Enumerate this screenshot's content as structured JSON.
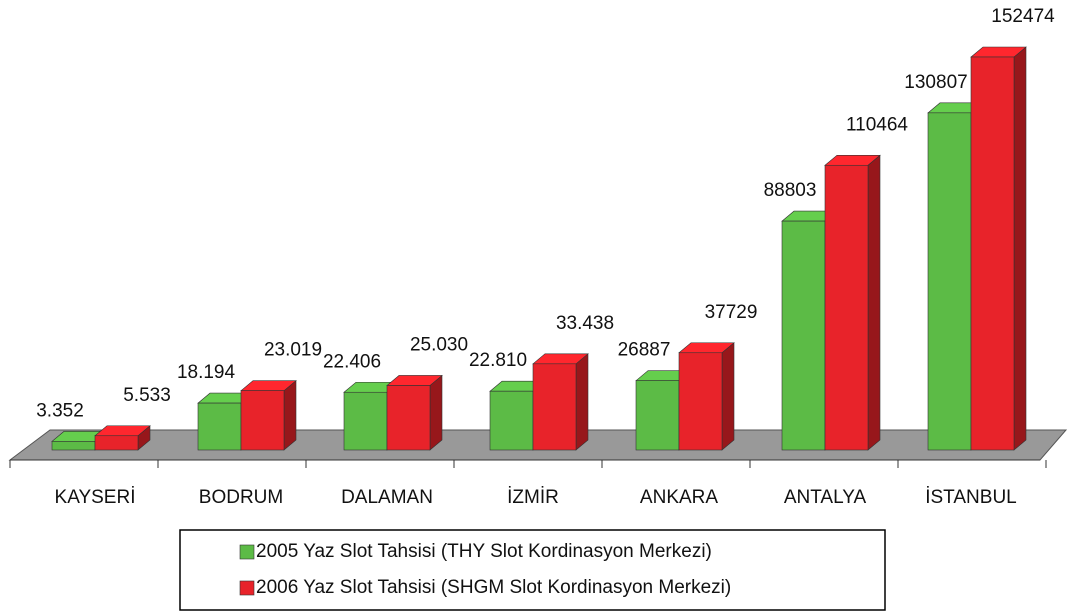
{
  "chart_data": {
    "type": "bar3d",
    "categories": [
      "KAYSERİ",
      "BODRUM",
      "DALAMAN",
      "İZMİR",
      "ANKARA",
      "ANTALYA",
      "İSTANBUL"
    ],
    "series": [
      {
        "name": "2005 Yaz Slot Tahsisi (THY Slot Kordinasyon Merkezi)",
        "color": "#5cbb46",
        "values": [
          3352,
          18194,
          22406,
          22810,
          26887,
          88803,
          130807
        ],
        "value_labels": [
          "3.352",
          "18.194",
          "22.406",
          "22.810",
          "26887",
          "88803",
          "130807"
        ]
      },
      {
        "name": "2006 Yaz Slot Tahsisi (SHGM Slot Kordinasyon Merkezi)",
        "color": "#e8232a",
        "values": [
          5533,
          23019,
          25030,
          33438,
          37729,
          110464,
          152474
        ],
        "value_labels": [
          "5.533",
          "23.019",
          "25.030",
          "33.438",
          "37729",
          "110464",
          "152474"
        ]
      }
    ]
  }
}
